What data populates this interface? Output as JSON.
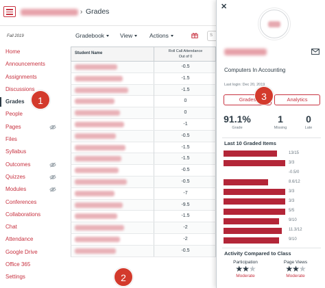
{
  "header": {
    "breadcrumb_separator": "›",
    "page_title": "Grades"
  },
  "sidebar": {
    "term": "Fall 2019",
    "items": [
      {
        "label": "Home",
        "active": false,
        "hidden_icon": false
      },
      {
        "label": "Announcements",
        "active": false,
        "hidden_icon": false
      },
      {
        "label": "Assignments",
        "active": false,
        "hidden_icon": false
      },
      {
        "label": "Discussions",
        "active": false,
        "hidden_icon": false
      },
      {
        "label": "Grades",
        "active": true,
        "hidden_icon": false
      },
      {
        "label": "People",
        "active": false,
        "hidden_icon": false
      },
      {
        "label": "Pages",
        "active": false,
        "hidden_icon": true
      },
      {
        "label": "Files",
        "active": false,
        "hidden_icon": false
      },
      {
        "label": "Syllabus",
        "active": false,
        "hidden_icon": false
      },
      {
        "label": "Outcomes",
        "active": false,
        "hidden_icon": true
      },
      {
        "label": "Quizzes",
        "active": false,
        "hidden_icon": true
      },
      {
        "label": "Modules",
        "active": false,
        "hidden_icon": true
      },
      {
        "label": "Conferences",
        "active": false,
        "hidden_icon": false
      },
      {
        "label": "Collaborations",
        "active": false,
        "hidden_icon": false
      },
      {
        "label": "Chat",
        "active": false,
        "hidden_icon": false
      },
      {
        "label": "Attendance",
        "active": false,
        "hidden_icon": false
      },
      {
        "label": "Google Drive",
        "active": false,
        "hidden_icon": false
      },
      {
        "label": "Office 365",
        "active": false,
        "hidden_icon": false
      },
      {
        "label": "Settings",
        "active": false,
        "hidden_icon": false
      }
    ]
  },
  "toolbar": {
    "gradebook_label": "Gradebook",
    "view_label": "View",
    "actions_label": "Actions",
    "search_placeholder": "S"
  },
  "grid": {
    "col_name": "Student Name",
    "col_assignment_line1": "Roll Call Attendance",
    "col_assignment_line2": "Out of 0",
    "scores": [
      "-0.5",
      "-1.5",
      "-1.5",
      "0",
      "0",
      "-1",
      "-0.5",
      "-1.5",
      "-1.5",
      "-0.5",
      "-0.5",
      "-7",
      "-9.5",
      "-1.5",
      "-2",
      "-2",
      "-0.5"
    ]
  },
  "tray": {
    "course_name": "Computers In Accounting",
    "last_login": "Last login: Dec 20, 2019",
    "tabs": {
      "grades": "Grades",
      "analytics": "Analytics"
    },
    "stats": [
      {
        "value": "91.1%",
        "label": "Grade"
      },
      {
        "value": "1",
        "label": "Missing"
      },
      {
        "value": "0",
        "label": "Late"
      }
    ],
    "graded_title": "Last 10 Graded Items",
    "graded_items": [
      {
        "label": "13/15",
        "fraction": 0.867
      },
      {
        "label": "3/3",
        "fraction": 1.0
      },
      {
        "label": "-0.5/0",
        "fraction": 0.0
      },
      {
        "label": "8.6/12",
        "fraction": 0.717
      },
      {
        "label": "3/3",
        "fraction": 1.0
      },
      {
        "label": "3/3",
        "fraction": 1.0
      },
      {
        "label": "5/5",
        "fraction": 1.0
      },
      {
        "label": "9/10",
        "fraction": 0.9
      },
      {
        "label": "11.3/12",
        "fraction": 0.942
      },
      {
        "label": "9/10",
        "fraction": 0.9
      }
    ],
    "activity_title": "Activity Compared to Class",
    "activity": [
      {
        "label": "Participation",
        "stars": 2,
        "value": "Moderate"
      },
      {
        "label": "Page Views",
        "stars": 2,
        "value": "Moderate"
      }
    ]
  },
  "callouts": [
    "1",
    "2",
    "3"
  ],
  "colors": {
    "brand": "#c7313f",
    "bar": "#b32638",
    "callout": "#d33a2c"
  }
}
